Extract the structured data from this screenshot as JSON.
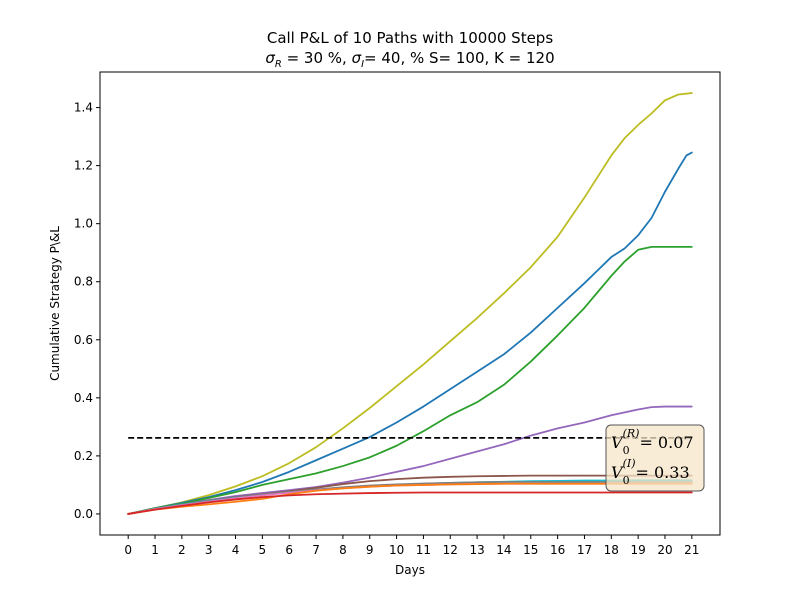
{
  "chart_data": {
    "type": "line",
    "title": "Call P&L of 10 Paths with 10000 Steps",
    "subtitle_parts": [
      "σ",
      "R",
      " = 30 %, ",
      "σ",
      "I",
      "= 40, % S= 100, K = 120"
    ],
    "xlabel": "Days",
    "ylabel": "Cumulative Strategy P\\&L",
    "xlim": [
      -1.05,
      22.05
    ],
    "ylim": [
      -0.0725,
      1.5225
    ],
    "xticks": [
      0,
      1,
      2,
      3,
      4,
      5,
      6,
      7,
      8,
      9,
      10,
      11,
      12,
      13,
      14,
      15,
      16,
      17,
      18,
      19,
      20,
      21
    ],
    "yticks": [
      0.0,
      0.2,
      0.4,
      0.6,
      0.8,
      1.0,
      1.2,
      1.4
    ],
    "ytick_labels": [
      "0.0",
      "0.2",
      "0.4",
      "0.6",
      "0.8",
      "1.0",
      "1.2",
      "1.4"
    ],
    "grid": false,
    "reference_line": {
      "y": 0.262,
      "x_start": 0,
      "x_end": 21,
      "style": "dashed",
      "color": "#000000"
    },
    "annotation": {
      "lines": [
        {
          "base": "V",
          "sub": "0",
          "sup": "(R)",
          "rest": "= 0.07"
        },
        {
          "base": "V",
          "sub": "0",
          "sup": "(I)",
          "rest": "= 0.33"
        }
      ],
      "placement": "lower-right",
      "background": "#f5e6c8",
      "border": "#555555"
    },
    "series": [
      {
        "color": "#bcbd22",
        "x": [
          0,
          1,
          2,
          3,
          4,
          5,
          6,
          7,
          8,
          9,
          10,
          11,
          12,
          13,
          14,
          15,
          16,
          17,
          18,
          18.5,
          19,
          19.5,
          20,
          20.5,
          21
        ],
        "y": [
          0,
          0.02,
          0.04,
          0.065,
          0.095,
          0.13,
          0.175,
          0.23,
          0.295,
          0.365,
          0.44,
          0.515,
          0.595,
          0.675,
          0.76,
          0.85,
          0.955,
          1.09,
          1.235,
          1.295,
          1.34,
          1.38,
          1.425,
          1.445,
          1.45
        ]
      },
      {
        "color": "#1f77b4",
        "x": [
          0,
          1,
          2,
          3,
          4,
          5,
          6,
          7,
          8,
          9,
          10,
          11,
          12,
          13,
          14,
          15,
          16,
          17,
          17.5,
          18,
          18.5,
          19,
          19.5,
          20,
          20.5,
          20.8,
          21
        ],
        "y": [
          0,
          0.02,
          0.038,
          0.058,
          0.082,
          0.11,
          0.145,
          0.185,
          0.225,
          0.265,
          0.315,
          0.37,
          0.43,
          0.49,
          0.55,
          0.625,
          0.71,
          0.795,
          0.84,
          0.885,
          0.915,
          0.96,
          1.02,
          1.11,
          1.19,
          1.235,
          1.245
        ]
      },
      {
        "color": "#2ca02c",
        "x": [
          0,
          1,
          2,
          3,
          4,
          5,
          6,
          7,
          8,
          9,
          10,
          11,
          12,
          13,
          14,
          15,
          16,
          17,
          17.5,
          18,
          18.5,
          19,
          19.5,
          20,
          21
        ],
        "y": [
          0,
          0.02,
          0.035,
          0.055,
          0.075,
          0.1,
          0.12,
          0.14,
          0.165,
          0.195,
          0.235,
          0.285,
          0.34,
          0.385,
          0.445,
          0.525,
          0.615,
          0.71,
          0.765,
          0.82,
          0.87,
          0.91,
          0.92,
          0.92,
          0.92
        ]
      },
      {
        "color": "#9467bd",
        "x": [
          0,
          1,
          2,
          3,
          4,
          5,
          6,
          7,
          8,
          9,
          10,
          11,
          12,
          13,
          14,
          15,
          16,
          17,
          18,
          19,
          19.5,
          20,
          21
        ],
        "y": [
          0,
          0.018,
          0.032,
          0.048,
          0.062,
          0.072,
          0.082,
          0.093,
          0.108,
          0.125,
          0.145,
          0.165,
          0.19,
          0.215,
          0.24,
          0.27,
          0.295,
          0.315,
          0.34,
          0.36,
          0.368,
          0.37,
          0.37
        ]
      },
      {
        "color": "#8c564b",
        "x": [
          0,
          1,
          2,
          3,
          4,
          5,
          6,
          7,
          8,
          9,
          10,
          11,
          12,
          13,
          14,
          15,
          16,
          17,
          18,
          19,
          20,
          21
        ],
        "y": [
          0,
          0.018,
          0.032,
          0.046,
          0.058,
          0.068,
          0.078,
          0.09,
          0.103,
          0.113,
          0.12,
          0.125,
          0.128,
          0.13,
          0.131,
          0.132,
          0.132,
          0.132,
          0.132,
          0.132,
          0.132,
          0.132
        ]
      },
      {
        "color": "#17becf",
        "x": [
          0,
          1,
          2,
          3,
          4,
          5,
          6,
          7,
          8,
          9,
          10,
          11,
          12,
          13,
          14,
          15,
          16,
          17,
          18,
          19,
          20,
          21
        ],
        "y": [
          0,
          0.018,
          0.032,
          0.045,
          0.056,
          0.066,
          0.075,
          0.083,
          0.09,
          0.096,
          0.1,
          0.104,
          0.107,
          0.109,
          0.111,
          0.113,
          0.114,
          0.115,
          0.115,
          0.116,
          0.116,
          0.116
        ]
      },
      {
        "color": "#7f7f7f",
        "x": [
          0,
          1,
          2,
          3,
          4,
          5,
          6,
          7,
          8,
          9,
          10,
          11,
          12,
          13,
          14,
          15,
          16,
          17,
          18,
          19,
          20,
          21
        ],
        "y": [
          0,
          0.017,
          0.031,
          0.044,
          0.055,
          0.066,
          0.075,
          0.084,
          0.092,
          0.098,
          0.102,
          0.105,
          0.107,
          0.109,
          0.11,
          0.11,
          0.11,
          0.11,
          0.11,
          0.11,
          0.11,
          0.11
        ]
      },
      {
        "color": "#e377c2",
        "x": [
          0,
          1,
          2,
          3,
          4,
          5,
          6,
          7,
          8,
          9,
          10,
          11,
          12,
          13,
          14,
          15,
          16,
          17,
          18,
          19,
          20,
          21
        ],
        "y": [
          0,
          0.017,
          0.03,
          0.042,
          0.054,
          0.064,
          0.073,
          0.081,
          0.088,
          0.094,
          0.098,
          0.1,
          0.102,
          0.103,
          0.104,
          0.104,
          0.104,
          0.104,
          0.104,
          0.104,
          0.104,
          0.104
        ]
      },
      {
        "color": "#ff7f0e",
        "x": [
          0,
          1,
          2,
          3,
          4,
          5,
          6,
          7,
          8,
          9,
          10,
          11,
          12,
          13,
          14,
          15,
          16,
          17,
          18,
          19,
          20,
          21
        ],
        "y": [
          0,
          0.015,
          0.025,
          0.033,
          0.042,
          0.052,
          0.068,
          0.08,
          0.088,
          0.094,
          0.098,
          0.1,
          0.102,
          0.103,
          0.104,
          0.104,
          0.104,
          0.104,
          0.104,
          0.104,
          0.104,
          0.104
        ]
      },
      {
        "color": "#d62728",
        "x": [
          0,
          1,
          2,
          3,
          4,
          5,
          6,
          7,
          8,
          9,
          10,
          11,
          12,
          13,
          14,
          15,
          16,
          17,
          18,
          19,
          20,
          21
        ],
        "y": [
          0,
          0.015,
          0.028,
          0.04,
          0.05,
          0.058,
          0.064,
          0.068,
          0.07,
          0.072,
          0.073,
          0.074,
          0.074,
          0.074,
          0.074,
          0.074,
          0.074,
          0.074,
          0.074,
          0.074,
          0.074,
          0.074
        ]
      }
    ]
  }
}
